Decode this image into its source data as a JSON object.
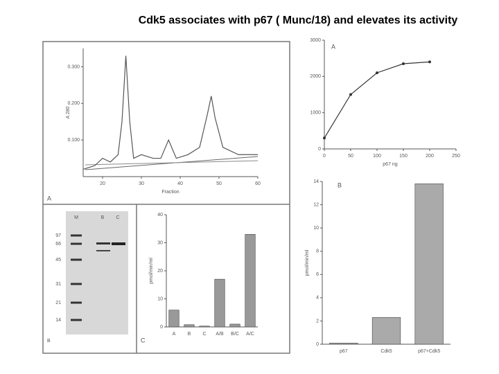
{
  "title": "Cdk5 associates with p67 ( Munc/18) and elevates its activity",
  "gel": {
    "label": "B",
    "lanes": [
      "M",
      "B",
      "C"
    ],
    "markers": [
      "97",
      "66",
      "45",
      "31",
      "21",
      "14"
    ]
  },
  "chart_data": [
    {
      "type": "line",
      "label": "A",
      "xlabel": "Fraction",
      "ylabel": "A 280",
      "x": [
        15,
        18,
        20,
        22,
        24,
        25,
        26,
        27,
        28,
        30,
        33,
        35,
        37,
        39,
        42,
        45,
        47,
        48,
        49,
        51,
        55,
        60
      ],
      "series": [
        {
          "color": "#555555",
          "values": [
            0.02,
            0.03,
            0.05,
            0.04,
            0.06,
            0.15,
            0.33,
            0.15,
            0.05,
            0.06,
            0.05,
            0.05,
            0.1,
            0.05,
            0.06,
            0.08,
            0.17,
            0.22,
            0.16,
            0.08,
            0.06,
            0.06
          ]
        }
      ],
      "xlim": [
        15,
        60
      ],
      "xticks": [
        20,
        30,
        40,
        50,
        60
      ],
      "ylim": [
        0,
        0.35
      ],
      "yticks": [
        {
          "value": 0.1,
          "label": "0.100"
        },
        {
          "value": 0.2,
          "label": "0.200"
        },
        {
          "value": 0.3,
          "label": "0.300"
        }
      ]
    },
    {
      "type": "line",
      "label": "A",
      "xlabel": "p67 ng",
      "markers": true,
      "x": [
        0,
        50,
        100,
        150,
        200
      ],
      "series": [
        {
          "color": "#333333",
          "values": [
            300,
            1500,
            2100,
            2350,
            2400
          ]
        }
      ],
      "xlim": [
        0,
        250
      ],
      "xticks": [
        0,
        50,
        100,
        150,
        200,
        250
      ],
      "ylim": [
        0,
        3000
      ],
      "yticks": [
        0,
        1000,
        2000,
        3000
      ]
    },
    {
      "type": "bar",
      "label": "C",
      "ylabel": "pmol/min/ml",
      "categories": [
        "A",
        "B",
        "C",
        "A/B",
        "B/C",
        "A/C"
      ],
      "values": [
        6,
        0.8,
        0.3,
        17,
        1,
        33
      ],
      "color": "#999999",
      "ylim": [
        0,
        40
      ],
      "yticks": [
        0,
        10,
        20,
        30,
        40
      ]
    },
    {
      "type": "bar",
      "label": "B",
      "ylabel": "pmol/min/ml",
      "categories": [
        "p67",
        "Cdk5",
        "p67+Cdk5"
      ],
      "values": [
        0.1,
        2.3,
        13.8
      ],
      "color": "#aaaaaa",
      "ylim": [
        0,
        14
      ],
      "yticks": [
        0,
        2,
        4,
        6,
        8,
        10,
        12,
        14
      ]
    }
  ]
}
